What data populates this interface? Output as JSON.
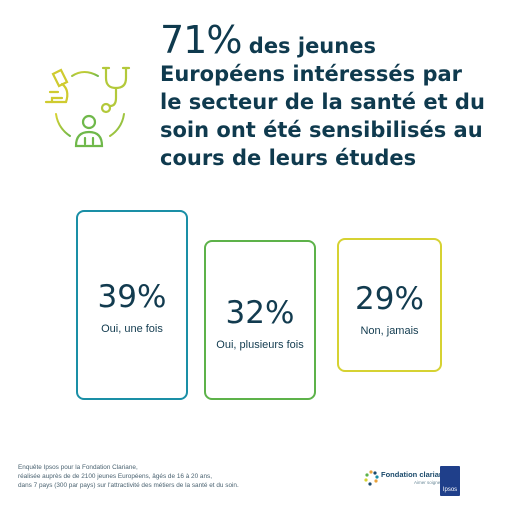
{
  "headline": {
    "big": "71%",
    "rest_line1": "des jeunes",
    "rest_line2": "Européens intéressés par",
    "rest_line3": "le secteur de la santé et du",
    "rest_line4": "soin ont été sensibilisés au",
    "rest_line5": "cours de leurs études"
  },
  "chart_data": {
    "type": "bar",
    "categories": [
      "Oui, une fois",
      "Oui, plusieurs fois",
      "Non, jamais"
    ],
    "values": [
      39,
      32,
      29
    ],
    "value_labels": [
      "39%",
      "32%",
      "29%"
    ],
    "colors": [
      "#1a8fa6",
      "#5db24a",
      "#d6d232"
    ],
    "title": "",
    "xlabel": "",
    "ylabel": ""
  },
  "icons": [
    "microscope-icon",
    "stethoscope-icon",
    "caregiver-icon"
  ],
  "footer": {
    "line1": "Enquête Ipsos pour la Fondation Clariane,",
    "line2": "réalisée auprès de de 2100 jeunes Européens, âgés de 16 à 20 ans,",
    "line3": "dans 7 pays (300 par pays) sur l'attractivité des métiers de la santé et du soin."
  },
  "logos": {
    "fondation": "Fondation clariane",
    "fondation_tag": "Aimer soigner",
    "ipsos": "Ipsos"
  }
}
